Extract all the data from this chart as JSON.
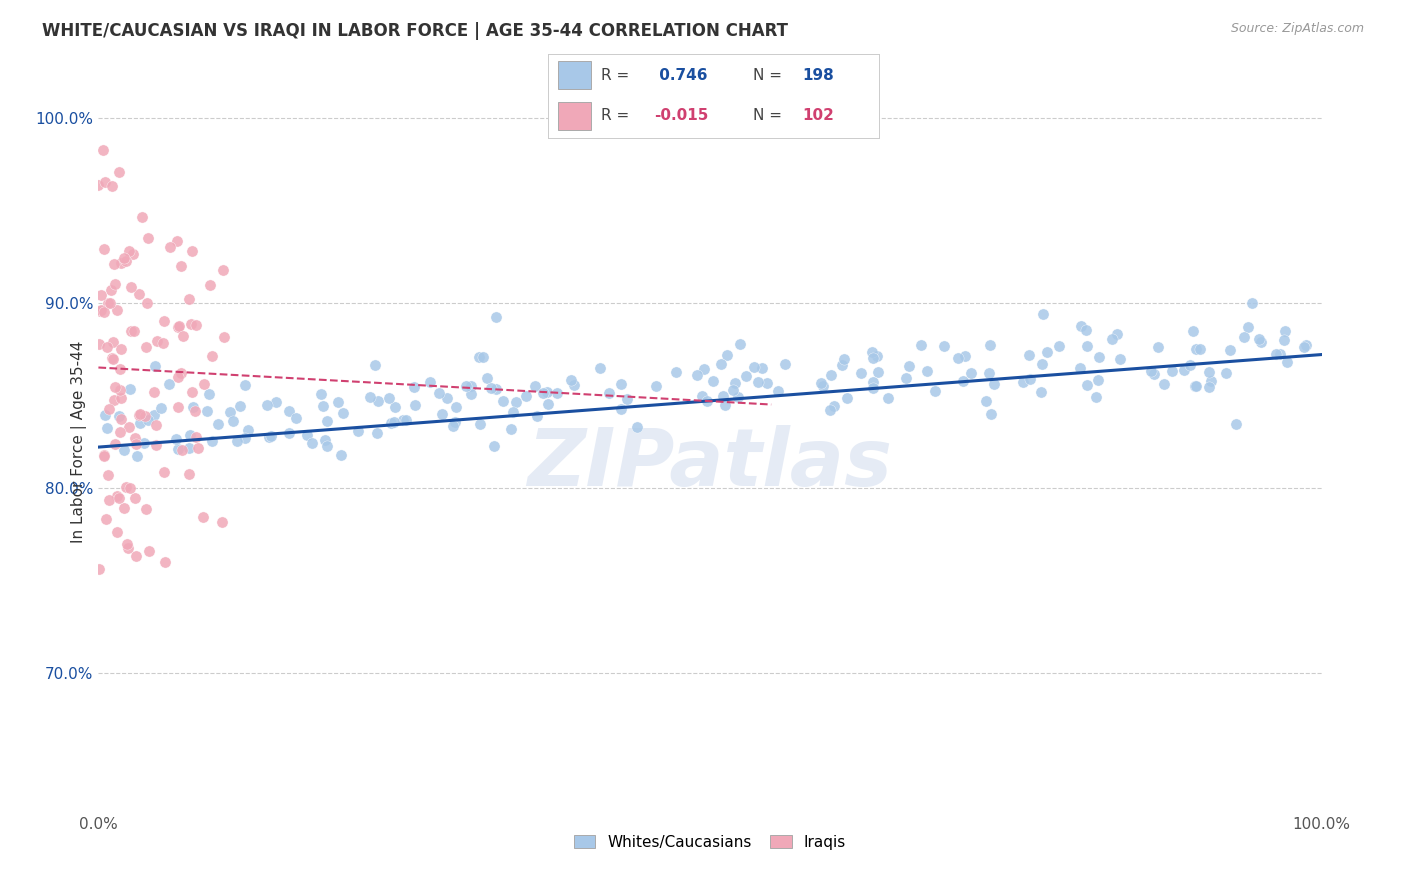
{
  "title": "WHITE/CAUCASIAN VS IRAQI IN LABOR FORCE | AGE 35-44 CORRELATION CHART",
  "source": "Source: ZipAtlas.com",
  "ylabel": "In Labor Force | Age 35-44",
  "watermark": "ZIPatlas",
  "blue_R": 0.746,
  "blue_N": 198,
  "pink_R": -0.015,
  "pink_N": 102,
  "xlim": [
    0.0,
    1.0
  ],
  "ylim": [
    0.625,
    1.025
  ],
  "yticks": [
    0.7,
    0.8,
    0.9,
    1.0
  ],
  "ytick_labels": [
    "70.0%",
    "80.0%",
    "90.0%",
    "100.0%"
  ],
  "blue_color": "#a8c8e8",
  "pink_color": "#f0a8b8",
  "blue_line_color": "#1a4fa0",
  "pink_line_color": "#d04070",
  "axis_label_color": "#1a4fa0",
  "legend_label_blue": "Whites/Caucasians",
  "legend_label_pink": "Iraqis",
  "blue_line_y0": 0.822,
  "blue_line_y1": 0.872,
  "pink_line_x0": 0.0,
  "pink_line_x1": 0.55,
  "pink_line_y0": 0.865,
  "pink_line_y1": 0.845
}
